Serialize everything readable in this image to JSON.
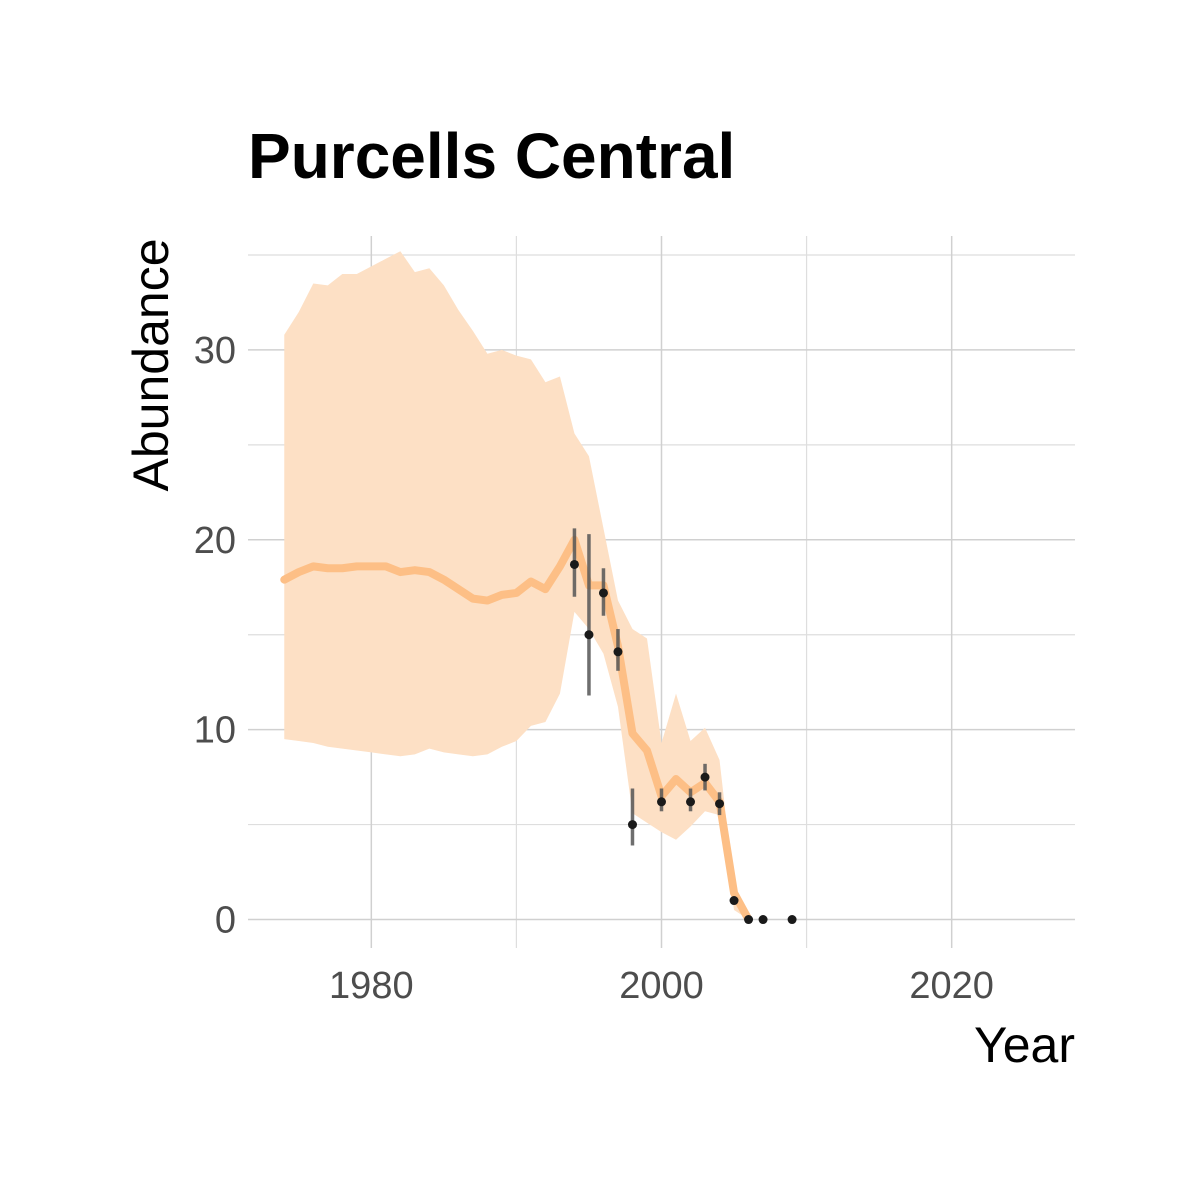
{
  "chart_data": {
    "type": "line",
    "title": "Purcells Central",
    "xlabel": "Year",
    "ylabel": "Abundance",
    "xlim": [
      1971.5,
      2028.5
    ],
    "ylim": [
      -1.5,
      36
    ],
    "x_ticks": [
      1980,
      2000,
      2020
    ],
    "y_ticks": [
      0,
      10,
      20,
      30
    ],
    "grid": true,
    "legend": "none",
    "colors": {
      "line": "#fdbf86",
      "ribbon": "#fde0c5",
      "points": "#1a1a1a",
      "error_bars": "#555555"
    },
    "series": [
      {
        "type": "line",
        "x": [
          1974,
          1975,
          1976,
          1977,
          1978,
          1979,
          1980,
          1981,
          1982,
          1983,
          1984,
          1985,
          1986,
          1987,
          1988,
          1989,
          1990,
          1991,
          1992,
          1993,
          1994,
          1995,
          1996,
          1997,
          1998,
          1999,
          2000,
          2001,
          2002,
          2003,
          2004,
          2005,
          2006
        ],
        "y": [
          17.9,
          18.3,
          18.6,
          18.5,
          18.5,
          18.6,
          18.6,
          18.6,
          18.3,
          18.4,
          18.3,
          17.9,
          17.4,
          16.9,
          16.8,
          17.1,
          17.2,
          17.8,
          17.4,
          18.6,
          20.0,
          17.6,
          17.6,
          14.4,
          9.8,
          8.9,
          6.5,
          7.4,
          6.7,
          7.2,
          6.2,
          1.4,
          0.0
        ],
        "lower": [
          9.5,
          9.4,
          9.3,
          9.1,
          9.0,
          8.9,
          8.8,
          8.7,
          8.6,
          8.7,
          9.0,
          8.8,
          8.7,
          8.6,
          8.7,
          9.1,
          9.4,
          10.2,
          10.4,
          11.9,
          16.2,
          15.3,
          14.0,
          11.2,
          5.6,
          5.1,
          4.6,
          4.2,
          4.9,
          5.7,
          5.5,
          0.5,
          0.0
        ],
        "upper": [
          30.8,
          32.0,
          33.5,
          33.4,
          34.0,
          34.0,
          34.4,
          34.8,
          35.2,
          34.1,
          34.3,
          33.4,
          32.1,
          31.0,
          29.8,
          30.0,
          29.7,
          29.5,
          28.3,
          28.6,
          25.6,
          24.4,
          20.6,
          16.8,
          15.3,
          14.8,
          9.3,
          11.9,
          9.4,
          10.1,
          8.4,
          1.7,
          0.0
        ]
      },
      {
        "type": "scatter",
        "x": [
          1994,
          1995,
          1996,
          1997,
          1998,
          2000,
          2002,
          2003,
          2004,
          2005,
          2006,
          2007,
          2009
        ],
        "y": [
          18.7,
          15.0,
          17.2,
          14.1,
          5.0,
          6.2,
          6.2,
          7.5,
          6.1,
          1.0,
          0.0,
          0.0,
          0.0
        ],
        "error_low": [
          17.0,
          11.8,
          16.0,
          13.1,
          3.9,
          5.7,
          5.7,
          6.8,
          5.5,
          1.0,
          0.0,
          0.0,
          0.0
        ],
        "error_high": [
          20.6,
          20.3,
          18.5,
          15.3,
          6.9,
          6.9,
          6.9,
          8.2,
          6.7,
          1.0,
          0.0,
          0.0,
          0.0
        ]
      }
    ]
  }
}
